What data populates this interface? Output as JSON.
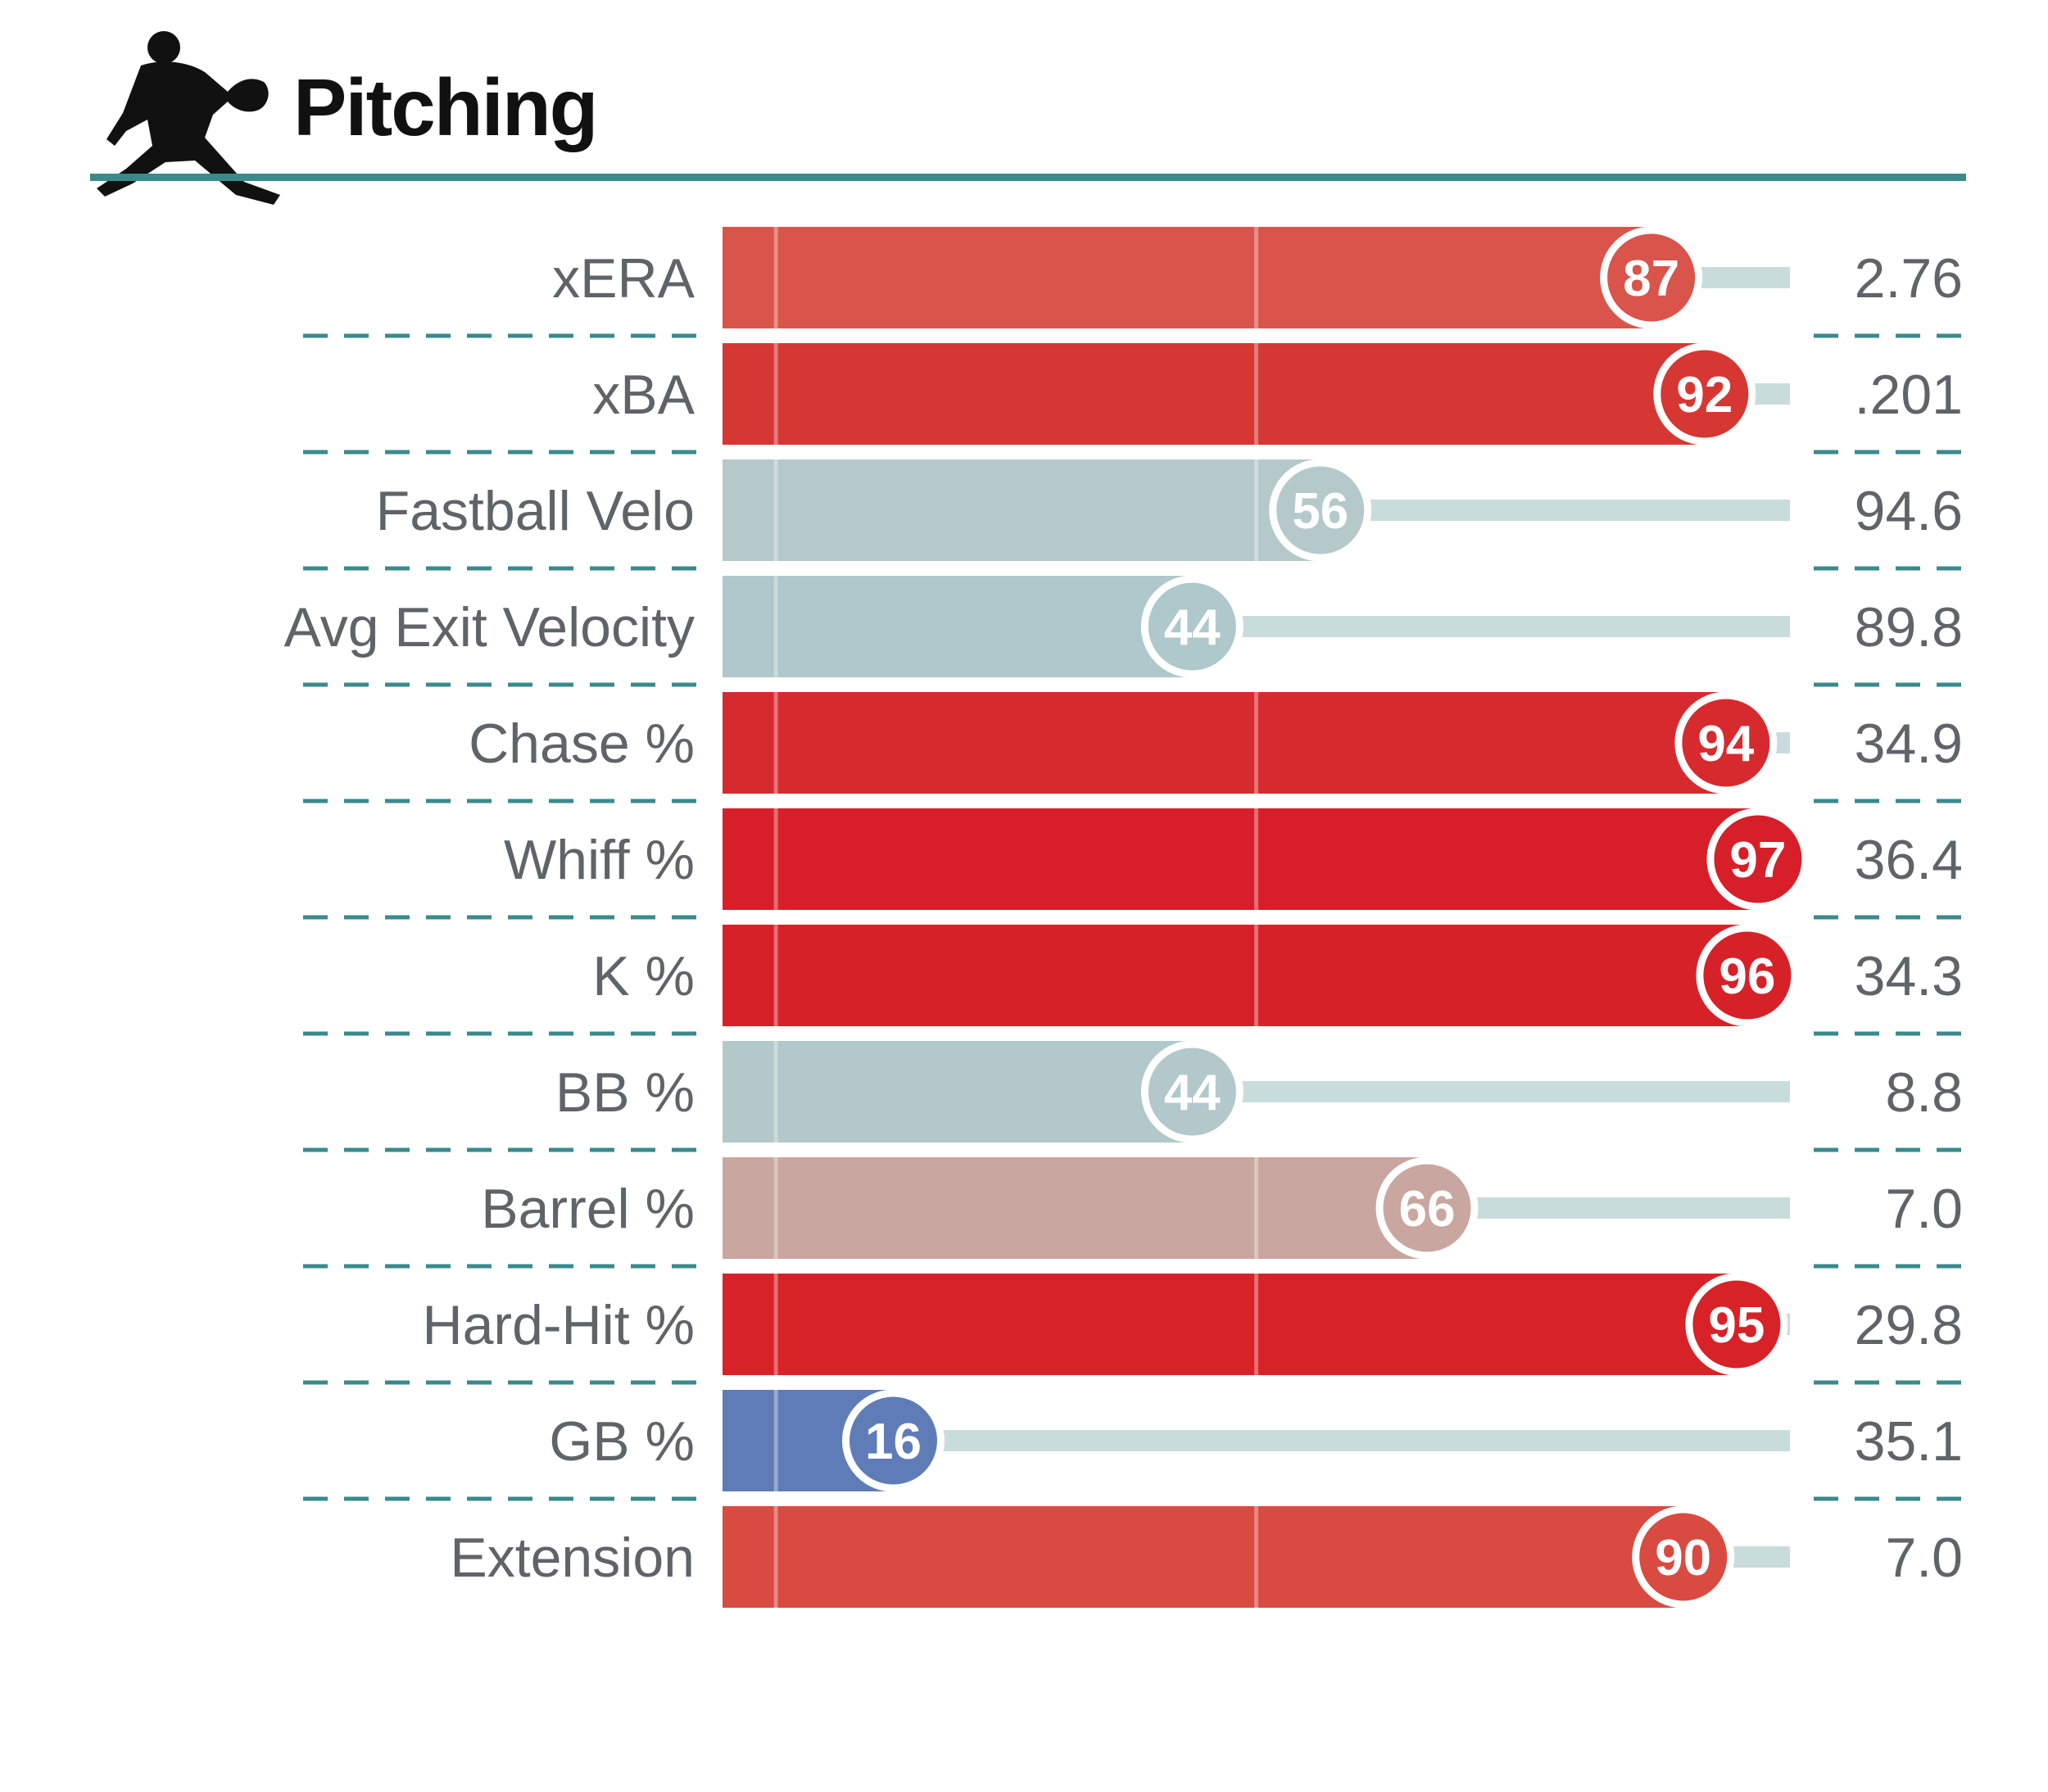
{
  "header": {
    "title": "Pitching",
    "icon": "pitcher-silhouette-icon"
  },
  "colors": {
    "rule": "#3a8a8c",
    "divider": "#3a8a8c",
    "track": "#c9dcdc"
  },
  "chart_data": {
    "type": "bar",
    "orientation": "horizontal",
    "title": "",
    "xlim": [
      0,
      100
    ],
    "legend": "none",
    "grid": "vertical lines",
    "categories": [
      "xERA",
      "xBA",
      "Fastball Velo",
      "Avg Exit Velocity",
      "Chase %",
      "Whiff %",
      "K %",
      "BB %",
      "Barrel %",
      "Hard-Hit %",
      "GB %",
      "Extension"
    ],
    "series": [
      {
        "values": [
          87,
          92,
          56,
          44,
          94,
          97,
          96,
          44,
          66,
          95,
          16,
          90
        ],
        "colors": [
          "#d9544a",
          "#d63733",
          "#b5c9ca",
          "#aec8cb",
          "#d72a2e",
          "#d61f29",
          "#d72128",
          "#b2c8cb",
          "#c9a69f",
          "#d72228",
          "#5f7cb7",
          "#d94a40"
        ]
      }
    ],
    "stat_values": [
      "2.76",
      ".201",
      "94.6",
      "89.8",
      "34.9",
      "36.4",
      "34.3",
      "8.8",
      "7.0",
      "29.8",
      "35.1",
      "7.0"
    ]
  }
}
